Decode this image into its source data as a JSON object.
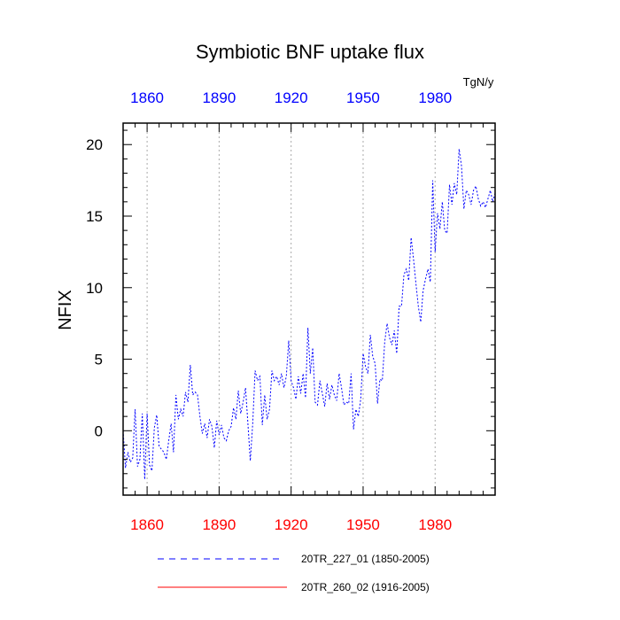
{
  "chart_data": {
    "type": "line",
    "title": "Symbiotic BNF uptake flux",
    "units": "TgN/y",
    "ylabel": "NFIX",
    "xlabel": "",
    "xlim": [
      1850,
      2005
    ],
    "ylim": [
      -4.5,
      21.5
    ],
    "x_ticks": [
      1860,
      1890,
      1920,
      1950,
      1980
    ],
    "x_tick_labels": [
      "1860",
      "1890",
      "1920",
      "1950",
      "1980"
    ],
    "y_ticks": [
      0,
      5,
      10,
      15,
      20
    ],
    "y_tick_labels": [
      "0",
      "5",
      "10",
      "15",
      "20"
    ],
    "top_axis_color": "#0000ff",
    "bottom_axis_color": "#ff0000",
    "grid": "vertical-dotted",
    "legend_position": "bottom",
    "series": [
      {
        "name": "20TR_227_01 (1850-2005)",
        "color": "#0000ff",
        "style": "dashed",
        "x_start": 1850,
        "values": [
          0.0,
          -2.6,
          -1.5,
          -2.2,
          -1.9,
          1.5,
          -2.5,
          -2.0,
          1.2,
          -3.4,
          1.2,
          -2.4,
          -2.8,
          0.2,
          1.1,
          -1.1,
          -1.3,
          -1.5,
          -2.0,
          -0.7,
          0.5,
          -1.5,
          2.5,
          0.8,
          1.5,
          1.0,
          2.7,
          2.0,
          4.6,
          2.5,
          2.7,
          2.5,
          1.0,
          -0.2,
          0.5,
          -0.5,
          0.8,
          0.3,
          -1.2,
          0.7,
          -0.3,
          0.4,
          -0.5,
          -0.7,
          0.0,
          0.3,
          1.6,
          0.8,
          2.8,
          1.2,
          2.0,
          3.0,
          0.5,
          -2.1,
          0.5,
          4.2,
          3.5,
          3.8,
          0.4,
          2.5,
          0.8,
          1.5,
          4.2,
          3.5,
          3.8,
          3.2,
          4.0,
          3.0,
          3.8,
          6.3,
          3.5,
          3.0,
          2.2,
          3.8,
          2.6,
          4.0,
          2.3,
          7.2,
          4.0,
          5.8,
          2.0,
          1.8,
          3.5,
          2.6,
          1.7,
          3.3,
          2.2,
          3.2,
          2.5,
          2.1,
          4.0,
          3.0,
          1.8,
          2.0,
          1.9,
          4.0,
          0.1,
          1.5,
          1.0,
          2.2,
          5.4,
          4.5,
          4.0,
          6.7,
          5.2,
          4.7,
          1.9,
          3.6,
          3.5,
          6.2,
          7.5,
          6.5,
          6.0,
          7.0,
          5.4,
          8.7,
          8.7,
          10.9,
          11.3,
          10.5,
          13.5,
          12.0,
          10.3,
          8.7,
          7.6,
          9.8,
          10.6,
          11.3,
          10.4,
          17.5,
          12.5,
          15.2,
          14.1,
          16.0,
          14.0,
          13.8,
          17.2,
          15.8,
          17.3,
          16.5,
          19.7,
          18.5,
          15.5,
          16.8,
          16.5,
          15.8,
          16.8,
          17.1,
          16.2,
          15.7,
          16.0,
          15.6,
          16.2,
          16.8,
          16.0,
          16.6
        ]
      },
      {
        "name": "20TR_260_02 (1916-2005)",
        "color": "#ff0000",
        "style": "solid",
        "values": []
      }
    ]
  }
}
